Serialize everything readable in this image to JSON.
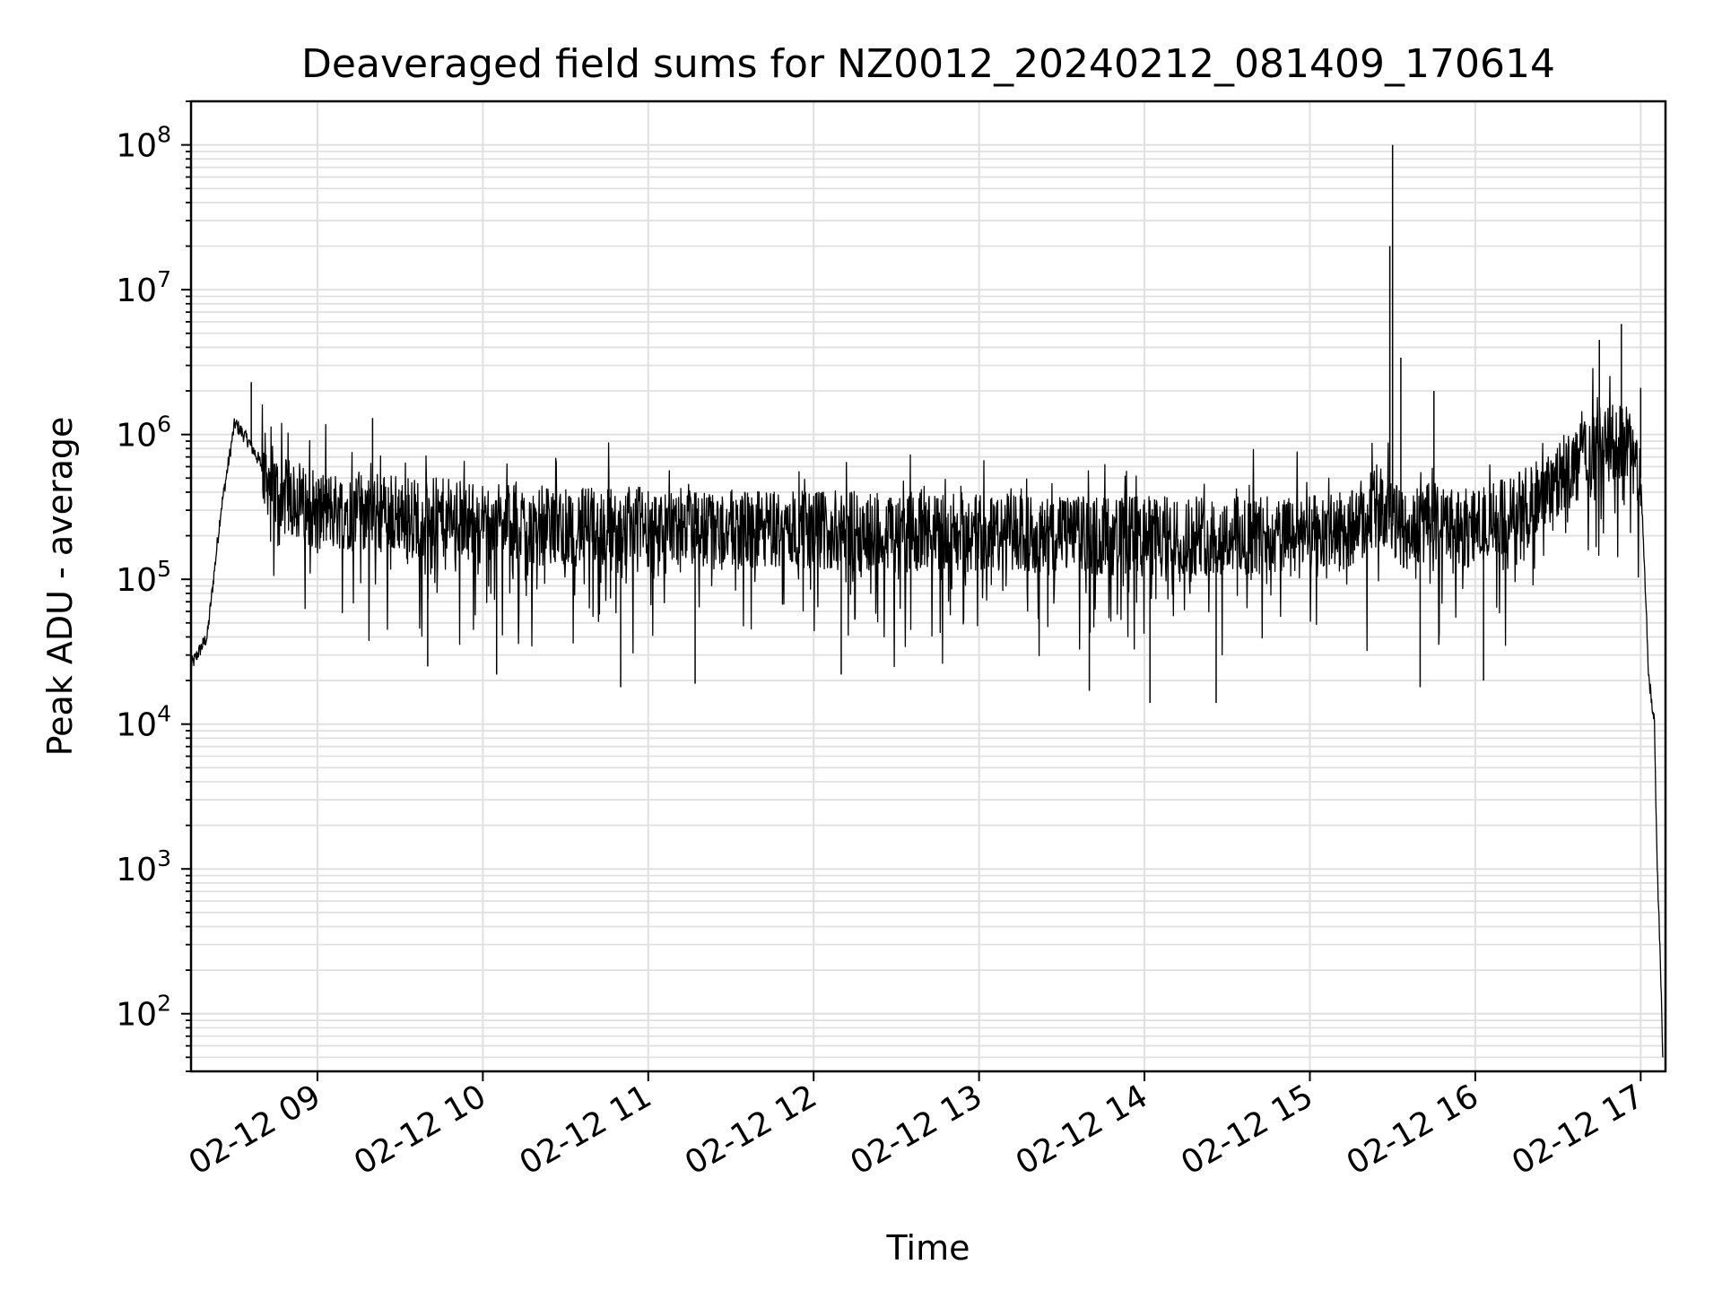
{
  "chart_data": {
    "type": "line",
    "title": "Deaveraged field sums for NZ0012_20240212_081409_170614",
    "xlabel": "Time",
    "ylabel": "Peak ADU - average",
    "yscale": "log",
    "ylim": [
      40,
      200000000
    ],
    "xlim": [
      "2024-02-12 08:14:09",
      "2024-02-12 17:09:00"
    ],
    "grid": true,
    "line_color": "#000000",
    "grid_color": "#e0e0e0",
    "x_ticks": [
      {
        "value": "2024-02-12 09:00",
        "label": "02-12 09"
      },
      {
        "value": "2024-02-12 10:00",
        "label": "02-12 10"
      },
      {
        "value": "2024-02-12 11:00",
        "label": "02-12 11"
      },
      {
        "value": "2024-02-12 12:00",
        "label": "02-12 12"
      },
      {
        "value": "2024-02-12 13:00",
        "label": "02-12 13"
      },
      {
        "value": "2024-02-12 14:00",
        "label": "02-12 14"
      },
      {
        "value": "2024-02-12 15:00",
        "label": "02-12 15"
      },
      {
        "value": "2024-02-12 16:00",
        "label": "02-12 16"
      },
      {
        "value": "2024-02-12 17:00",
        "label": "02-12 17"
      }
    ],
    "y_ticks": [
      {
        "value": 100,
        "base": "10",
        "exp": "2"
      },
      {
        "value": 1000,
        "base": "10",
        "exp": "3"
      },
      {
        "value": 10000,
        "base": "10",
        "exp": "4"
      },
      {
        "value": 100000,
        "base": "10",
        "exp": "5"
      },
      {
        "value": 1000000,
        "base": "10",
        "exp": "6"
      },
      {
        "value": 10000000,
        "base": "10",
        "exp": "7"
      },
      {
        "value": 100000000,
        "base": "10",
        "exp": "8"
      }
    ],
    "series": [
      {
        "x": [
          "2024-02-12 08:14",
          "2024-02-12 08:20",
          "2024-02-12 08:25",
          "2024-02-12 08:30",
          "2024-02-12 08:35",
          "2024-02-12 08:40",
          "2024-02-12 08:45",
          "2024-02-12 08:50",
          "2024-02-12 09:00",
          "2024-02-12 09:15",
          "2024-02-12 09:30",
          "2024-02-12 10:00",
          "2024-02-12 10:30",
          "2024-02-12 11:00",
          "2024-02-12 11:30",
          "2024-02-12 12:00",
          "2024-02-12 12:30",
          "2024-02-12 13:00",
          "2024-02-12 13:30",
          "2024-02-12 14:00",
          "2024-02-12 14:30",
          "2024-02-12 15:00",
          "2024-02-12 15:15",
          "2024-02-12 15:25",
          "2024-02-12 15:30",
          "2024-02-12 15:35",
          "2024-02-12 15:45",
          "2024-02-12 16:00",
          "2024-02-12 16:15",
          "2024-02-12 16:30",
          "2024-02-12 16:45",
          "2024-02-12 16:55",
          "2024-02-12 17:00",
          "2024-02-12 17:03",
          "2024-02-12 17:05",
          "2024-02-12 17:06",
          "2024-02-12 17:07",
          "2024-02-12 17:08"
        ],
        "y": [
          25000,
          40000,
          300000,
          1200000,
          900000,
          600000,
          400000,
          350000,
          300000,
          300000,
          280000,
          250000,
          230000,
          230000,
          220000,
          220000,
          210000,
          210000,
          200000,
          200000,
          200000,
          200000,
          220000,
          350000,
          250000,
          220000,
          250000,
          220000,
          300000,
          500000,
          800000,
          900000,
          500000,
          20000,
          10000,
          1000,
          300,
          50
        ],
        "spikes_up": [
          {
            "x": "2024-02-12 08:36",
            "y": 2300000
          },
          {
            "x": "2024-02-12 09:20",
            "y": 1300000
          },
          {
            "x": "2024-02-12 15:29",
            "y": 20000000
          },
          {
            "x": "2024-02-12 15:30",
            "y": 100000000
          },
          {
            "x": "2024-02-12 15:33",
            "y": 3400000
          },
          {
            "x": "2024-02-12 15:45",
            "y": 2000000
          },
          {
            "x": "2024-02-12 16:45",
            "y": 4500000
          },
          {
            "x": "2024-02-12 16:53",
            "y": 5800000
          },
          {
            "x": "2024-02-12 17:00",
            "y": 2100000
          }
        ],
        "spikes_down": [
          {
            "x": "2024-02-12 09:40",
            "y": 25000
          },
          {
            "x": "2024-02-12 10:05",
            "y": 22000
          },
          {
            "x": "2024-02-12 10:50",
            "y": 18000
          },
          {
            "x": "2024-02-12 11:17",
            "y": 19000
          },
          {
            "x": "2024-02-12 12:10",
            "y": 22000
          },
          {
            "x": "2024-02-12 13:40",
            "y": 17000
          },
          {
            "x": "2024-02-12 14:02",
            "y": 14000
          },
          {
            "x": "2024-02-12 14:26",
            "y": 14000
          },
          {
            "x": "2024-02-12 15:40",
            "y": 18000
          },
          {
            "x": "2024-02-12 16:03",
            "y": 20000
          }
        ]
      }
    ]
  }
}
